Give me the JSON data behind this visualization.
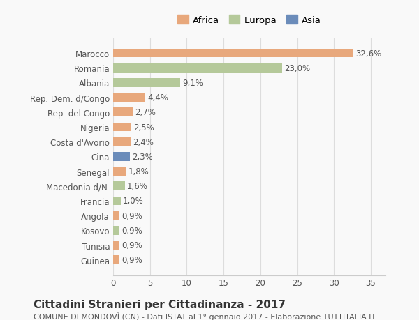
{
  "categories": [
    "Guinea",
    "Tunisia",
    "Kosovo",
    "Angola",
    "Francia",
    "Macedonia d/N.",
    "Senegal",
    "Cina",
    "Costa d'Avorio",
    "Nigeria",
    "Rep. del Congo",
    "Rep. Dem. d/Congo",
    "Albania",
    "Romania",
    "Marocco"
  ],
  "values": [
    0.9,
    0.9,
    0.9,
    0.9,
    1.0,
    1.6,
    1.8,
    2.3,
    2.4,
    2.5,
    2.7,
    4.4,
    9.1,
    23.0,
    32.6
  ],
  "labels": [
    "0,9%",
    "0,9%",
    "0,9%",
    "0,9%",
    "1,0%",
    "1,6%",
    "1,8%",
    "2,3%",
    "2,4%",
    "2,5%",
    "2,7%",
    "4,4%",
    "9,1%",
    "23,0%",
    "32,6%"
  ],
  "colors": [
    "#e8a87c",
    "#e8a87c",
    "#b5c99a",
    "#e8a87c",
    "#b5c99a",
    "#b5c99a",
    "#e8a87c",
    "#6b8cba",
    "#e8a87c",
    "#e8a87c",
    "#e8a87c",
    "#e8a87c",
    "#b5c99a",
    "#b5c99a",
    "#e8a87c"
  ],
  "continent": [
    "Africa",
    "Africa",
    "Europa",
    "Africa",
    "Europa",
    "Europa",
    "Africa",
    "Asia",
    "Africa",
    "Africa",
    "Africa",
    "Africa",
    "Europa",
    "Europa",
    "Africa"
  ],
  "legend_labels": [
    "Africa",
    "Europa",
    "Asia"
  ],
  "legend_colors": [
    "#e8a87c",
    "#b5c99a",
    "#6b8cba"
  ],
  "xlim": [
    0,
    37
  ],
  "xticks": [
    0,
    5,
    10,
    15,
    20,
    25,
    30,
    35
  ],
  "title": "Cittadini Stranieri per Cittadinanza - 2017",
  "subtitle": "COMUNE DI MONDOVÌ (CN) - Dati ISTAT al 1° gennaio 2017 - Elaborazione TUTTITALIA.IT",
  "background_color": "#f9f9f9",
  "bar_height": 0.6,
  "label_fontsize": 8.5,
  "ytick_fontsize": 8.5,
  "xtick_fontsize": 8.5,
  "title_fontsize": 11,
  "subtitle_fontsize": 8
}
